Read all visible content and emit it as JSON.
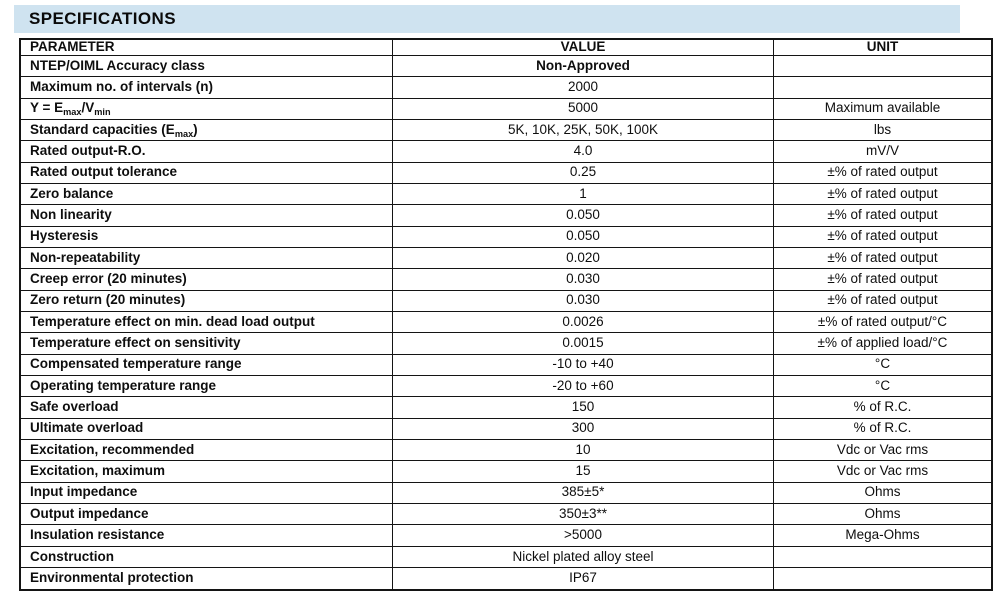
{
  "section": {
    "title": "SPECIFICATIONS"
  },
  "colors": {
    "header_bg": "#cfe3f0",
    "border": "#141414"
  },
  "table": {
    "headers": [
      "PARAMETER",
      "VALUE",
      "UNIT"
    ],
    "rows": [
      {
        "parameter": "NTEP/OIML Accuracy class",
        "value": "Non-Approved",
        "unit": "",
        "value_bold": true
      },
      {
        "parameter": "Maximum no. of intervals (n)",
        "value": "2000",
        "unit": "",
        "value_bold": false
      },
      {
        "parameter": "Y = E_{max}/V_{min}",
        "value": "5000",
        "unit": "Maximum available",
        "value_bold": false
      },
      {
        "parameter": "Standard capacities (E_{max})",
        "value": "5K, 10K, 25K, 50K, 100K",
        "unit": "lbs",
        "value_bold": false
      },
      {
        "parameter": "Rated output-R.O.",
        "value": "4.0",
        "unit": "mV/V",
        "value_bold": false
      },
      {
        "parameter": "Rated output tolerance",
        "value": "0.25",
        "unit": "±% of rated output",
        "value_bold": false
      },
      {
        "parameter": "Zero balance",
        "value": "1",
        "unit": "±% of rated output",
        "value_bold": false
      },
      {
        "parameter": "Non linearity",
        "value": "0.050",
        "unit": "±% of rated output",
        "value_bold": false
      },
      {
        "parameter": "Hysteresis",
        "value": "0.050",
        "unit": "±% of rated output",
        "value_bold": false
      },
      {
        "parameter": "Non-repeatability",
        "value": "0.020",
        "unit": "±% of rated output",
        "value_bold": false
      },
      {
        "parameter": "Creep error (20 minutes)",
        "value": "0.030",
        "unit": "±% of rated output",
        "value_bold": false
      },
      {
        "parameter": "Zero return (20 minutes)",
        "value": "0.030",
        "unit": "±% of rated output",
        "value_bold": false
      },
      {
        "parameter": "Temperature effect on min. dead load output",
        "value": "0.0026",
        "unit": "±% of rated output/°C",
        "value_bold": false
      },
      {
        "parameter": "Temperature effect on sensitivity",
        "value": "0.0015",
        "unit": "±% of applied load/°C",
        "value_bold": false
      },
      {
        "parameter": "Compensated temperature range",
        "value": "-10 to +40",
        "unit": "°C",
        "value_bold": false
      },
      {
        "parameter": "Operating temperature range",
        "value": "-20 to +60",
        "unit": "°C",
        "value_bold": false
      },
      {
        "parameter": "Safe overload",
        "value": "150",
        "unit": "% of R.C.",
        "value_bold": false
      },
      {
        "parameter": "Ultimate overload",
        "value": "300",
        "unit": "% of R.C.",
        "value_bold": false
      },
      {
        "parameter": "Excitation, recommended",
        "value": "10",
        "unit": "Vdc or Vac rms",
        "value_bold": false
      },
      {
        "parameter": "Excitation, maximum",
        "value": "15",
        "unit": "Vdc or Vac rms",
        "value_bold": false
      },
      {
        "parameter": "Input impedance",
        "value": "385±5*",
        "unit": "Ohms",
        "value_bold": false
      },
      {
        "parameter": "Output impedance",
        "value": "350±3**",
        "unit": "Ohms",
        "value_bold": false
      },
      {
        "parameter": "Insulation resistance",
        "value": ">5000",
        "unit": "Mega-Ohms",
        "value_bold": false
      },
      {
        "parameter": "Construction",
        "value": "Nickel plated alloy steel",
        "unit": "",
        "value_bold": false
      },
      {
        "parameter": "Environmental protection",
        "value": "IP67",
        "unit": "",
        "value_bold": false
      }
    ]
  }
}
